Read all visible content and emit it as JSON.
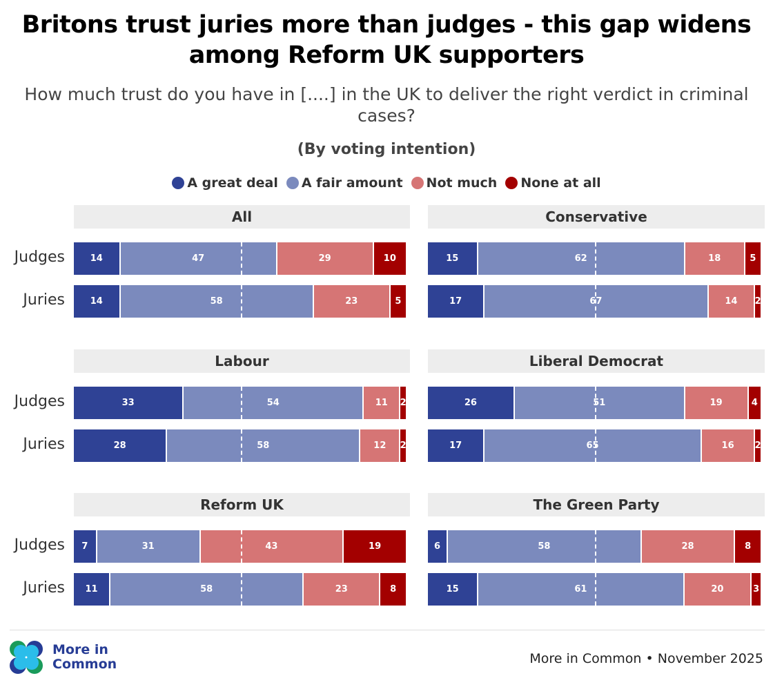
{
  "title": "Britons trust juries more than judges - this gap widens among Reform UK supporters",
  "subtitle": "How much trust do you have in [....] in the UK to deliver the right verdict in criminal cases?",
  "group_label": "(By voting intention)",
  "footer": {
    "brand": "More in Common",
    "source": "More in Common • November 2025"
  },
  "chart_data": {
    "type": "bar",
    "orientation": "horizontal",
    "stacked": true,
    "legend": "top",
    "series_names": [
      "A great deal",
      "A fair amount",
      "Not much",
      "None at all"
    ],
    "colors": [
      "#2f4295",
      "#7b8abd",
      "#d67575",
      "#a30000"
    ],
    "row_labels": [
      "Judges",
      "Juries"
    ],
    "panels": [
      {
        "title": "All",
        "rows": [
          [
            14,
            47,
            29,
            10
          ],
          [
            14,
            58,
            23,
            5
          ]
        ]
      },
      {
        "title": "Conservative",
        "rows": [
          [
            15,
            62,
            18,
            5
          ],
          [
            17,
            67,
            14,
            2
          ]
        ]
      },
      {
        "title": "Labour",
        "rows": [
          [
            33,
            54,
            11,
            2
          ],
          [
            28,
            58,
            12,
            2
          ]
        ]
      },
      {
        "title": "Liberal Democrat",
        "rows": [
          [
            26,
            51,
            19,
            4
          ],
          [
            17,
            65,
            16,
            2
          ]
        ]
      },
      {
        "title": "Reform UK",
        "rows": [
          [
            7,
            31,
            43,
            19
          ],
          [
            11,
            58,
            23,
            8
          ]
        ]
      },
      {
        "title": "The Green Party",
        "rows": [
          [
            6,
            58,
            28,
            8
          ],
          [
            15,
            61,
            20,
            3
          ]
        ]
      }
    ]
  }
}
